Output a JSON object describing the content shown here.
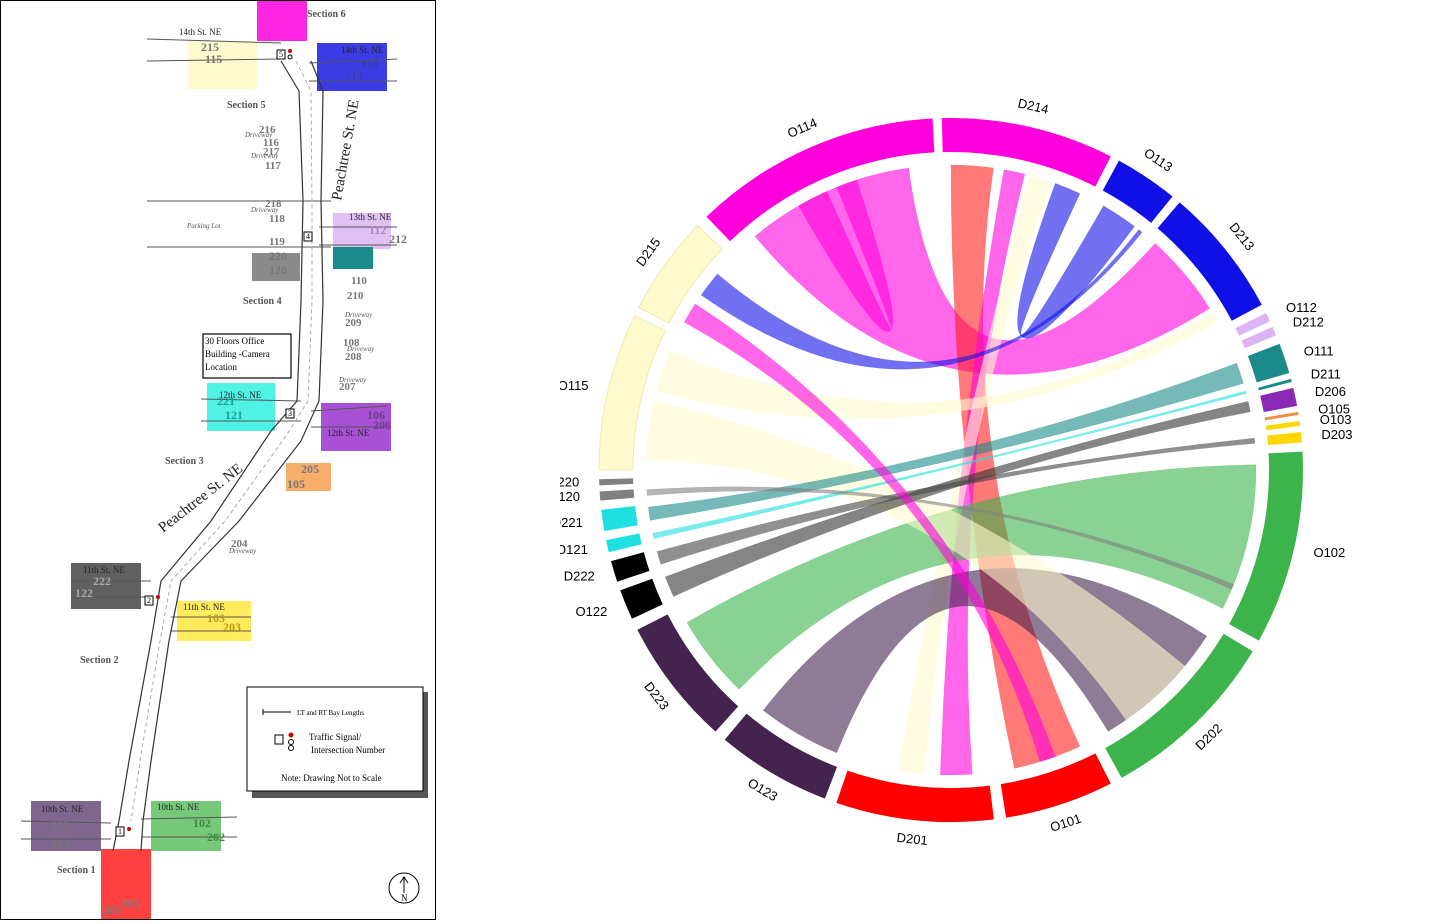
{
  "map": {
    "sections": [
      "Section 6",
      "Section 5",
      "Section 4",
      "Section 3",
      "Section 2",
      "Section 1"
    ],
    "streets": {
      "s14_left": "14th St. NE",
      "s14_right": "14th St. NE",
      "s13": "13th St. NE",
      "s12_left": "12th St. NE",
      "s12_right": "12th St. NE",
      "s11_left": "11th St. NE",
      "s11_right": "11th St. NE",
      "s10_left": "10th St. NE",
      "s10_right": "10th St. NE",
      "peachtree": "Peachtree St. NE"
    },
    "zones": [
      {
        "id": "114",
        "id2": "214",
        "color": "#ff00dc"
      },
      {
        "id": "215",
        "id2": "115",
        "color": "#fffacd"
      },
      {
        "id": "113",
        "id2": "213",
        "color": "#1010e0"
      },
      {
        "id": "112",
        "id2": "212",
        "color": "#e0c0f5"
      },
      {
        "id": "220",
        "id2": "120",
        "color": "#8a8a8a"
      },
      {
        "id": "111",
        "id2": "211",
        "color": "#1a8a8a"
      },
      {
        "id": "221",
        "id2": "121",
        "color": "#30f0e0"
      },
      {
        "id": "106",
        "id2": "206",
        "color": "#9933cc"
      },
      {
        "id": "205",
        "id2": "105",
        "color": "#f5a050"
      },
      {
        "id": "222",
        "id2": "122",
        "color": "#444444"
      },
      {
        "id": "103",
        "id2": "203",
        "color": "#ffe840"
      },
      {
        "id": "223",
        "id2": "123",
        "color": "#6a4a7a"
      },
      {
        "id": "102",
        "id2": "202",
        "color": "#5ec060"
      },
      {
        "id": "201",
        "id2": "101",
        "color": "#ff2020"
      }
    ],
    "driveways": [
      "216",
      "116",
      "217",
      "117",
      "218",
      "118",
      "119",
      "110",
      "210",
      "209",
      "108",
      "208",
      "207",
      "204"
    ],
    "driveway_word": "Driveway",
    "parking": "Parking Lot",
    "signals": [
      "1",
      "2",
      "3",
      "4",
      "5"
    ],
    "office_note": "30 Floors Office Building -Camera Location",
    "legend": {
      "bay": "LT and RT Bay Lengths",
      "signal_line1": "Traffic Signal/",
      "signal_line2": "Intersection Number",
      "note": "Note: Drawing Not to Scale"
    },
    "north": "N"
  },
  "chart_data": {
    "type": "chord",
    "groups": [
      {
        "name": "O114",
        "color": "#ff00dc",
        "start": -44.0,
        "end": -3.0
      },
      {
        "name": "D214",
        "color": "#ff00dc",
        "start": -1.5,
        "end": 27.0
      },
      {
        "name": "O113",
        "color": "#1010e6",
        "start": 28.5,
        "end": 39.0
      },
      {
        "name": "D213",
        "color": "#1010e6",
        "start": 40.5,
        "end": 62.0
      },
      {
        "name": "O112",
        "color": "#dcb4f5",
        "start": 63.5,
        "end": 65.0
      },
      {
        "name": "D212",
        "color": "#dcb4f5",
        "start": 66.0,
        "end": 67.5
      },
      {
        "name": "O111",
        "color": "#1a8a8a",
        "start": 69.0,
        "end": 74.0
      },
      {
        "name": "D211",
        "color": "#1a8a8a",
        "start": 75.0,
        "end": 75.5
      },
      {
        "name": "D206",
        "color": "#8a2ab4",
        "start": 76.5,
        "end": 79.5
      },
      {
        "name": "O105",
        "color": "#f09040",
        "start": 80.5,
        "end": 81.0
      },
      {
        "name": "O103",
        "color": "#ffd700",
        "start": 82.0,
        "end": 82.8
      },
      {
        "name": "D203",
        "color": "#ffd700",
        "start": 83.8,
        "end": 85.5
      },
      {
        "name": "O102",
        "color": "#3cb44b",
        "start": 87.0,
        "end": 119.0
      },
      {
        "name": "D202",
        "color": "#3cb44b",
        "start": 121.0,
        "end": 151.0
      },
      {
        "name": "O101",
        "color": "#ff0000",
        "start": 153.0,
        "end": 171.0
      },
      {
        "name": "D201",
        "color": "#ff0000",
        "start": 173.0,
        "end": 199.0
      },
      {
        "name": "O123",
        "color": "#44234f",
        "start": 201.0,
        "end": 220.0
      },
      {
        "name": "D223",
        "color": "#44234f",
        "start": 222.0,
        "end": 243.0
      },
      {
        "name": "O122",
        "color": "#000000",
        "start": 245.0,
        "end": 250.0
      },
      {
        "name": "D222",
        "color": "#000000",
        "start": 251.5,
        "end": 255.0
      },
      {
        "name": "O121",
        "color": "#1ee0e0",
        "start": 256.5,
        "end": 258.5
      },
      {
        "name": "D221",
        "color": "#1ee0e0",
        "start": 260.0,
        "end": 263.5
      },
      {
        "name": "O120",
        "color": "#808080",
        "start": 265.0,
        "end": 266.5
      },
      {
        "name": "D220",
        "color": "#808080",
        "start": 267.5,
        "end": 268.5
      },
      {
        "name": "O115",
        "color": "#fffacd",
        "start": 270.0,
        "end": 296.0
      },
      {
        "name": "D215",
        "color": "#fffacd",
        "start": 297.5,
        "end": 314.0
      }
    ],
    "chords": [
      {
        "from": "O114",
        "a": [
          -40,
          -8
        ],
        "to": "D213",
        "b": [
          42,
          58
        ],
        "color": "#ff00dc"
      },
      {
        "from": "O114",
        "a": [
          -30,
          -24
        ],
        "to": "O114",
        "b": [
          -22,
          -18
        ],
        "color": "#ff00dc"
      },
      {
        "from": "D214",
        "a": [
          0,
          8
        ],
        "to": "O101",
        "b": [
          155,
          168
        ],
        "color": "#ff2020"
      },
      {
        "from": "D214",
        "a": [
          10,
          14
        ],
        "to": "D201",
        "b": [
          176,
          182
        ],
        "color": "#ff00dc"
      },
      {
        "from": "D214",
        "a": [
          15,
          19
        ],
        "to": "O123",
        "b": [
          185,
          190
        ],
        "color": "#fffacd"
      },
      {
        "from": "D214",
        "a": [
          20,
          25
        ],
        "to": "O113",
        "b": [
          30,
          37
        ],
        "color": "#1010e6"
      },
      {
        "from": "O113",
        "a": [
          38,
          38.8
        ],
        "to": "D215",
        "b": [
          305,
          310
        ],
        "color": "#1010e6"
      },
      {
        "from": "D213",
        "a": [
          59,
          61
        ],
        "to": "O115",
        "b": [
          285,
          293
        ],
        "color": "#fffacd"
      },
      {
        "from": "O102",
        "a": [
          89,
          117
        ],
        "to": "D223",
        "b": [
          224,
          240
        ],
        "color": "#3cb44b"
      },
      {
        "from": "D202",
        "a": [
          123,
          149
        ],
        "to": "O123",
        "b": [
          202,
          218
        ],
        "color": "#44234f"
      },
      {
        "from": "O115",
        "a": [
          272,
          283
        ],
        "to": "D202",
        "b": [
          130,
          145
        ],
        "color": "#fffacd"
      },
      {
        "from": "O111",
        "a": [
          69.5,
          73.5
        ],
        "to": "D221",
        "b": [
          260.5,
          263
        ],
        "color": "#1a8a8a"
      },
      {
        "from": "O122",
        "a": [
          245.5,
          249.5
        ],
        "to": "D206",
        "b": [
          77,
          79
        ],
        "color": "#333333"
      },
      {
        "from": "O121",
        "a": [
          257,
          258
        ],
        "to": "D211",
        "b": [
          75,
          75.5
        ],
        "color": "#1ee0e0"
      },
      {
        "from": "O120",
        "a": [
          265.2,
          266.3
        ],
        "to": "O102",
        "b": [
          112,
          113
        ],
        "color": "#808080"
      },
      {
        "from": "D222",
        "a": [
          252,
          254.5
        ],
        "to": "D203",
        "b": [
          84,
          85
        ],
        "color": "#444444"
      },
      {
        "from": "D215",
        "a": [
          299,
          303
        ],
        "to": "O101",
        "b": [
          160,
          163
        ],
        "color": "#ff00dc"
      }
    ]
  }
}
